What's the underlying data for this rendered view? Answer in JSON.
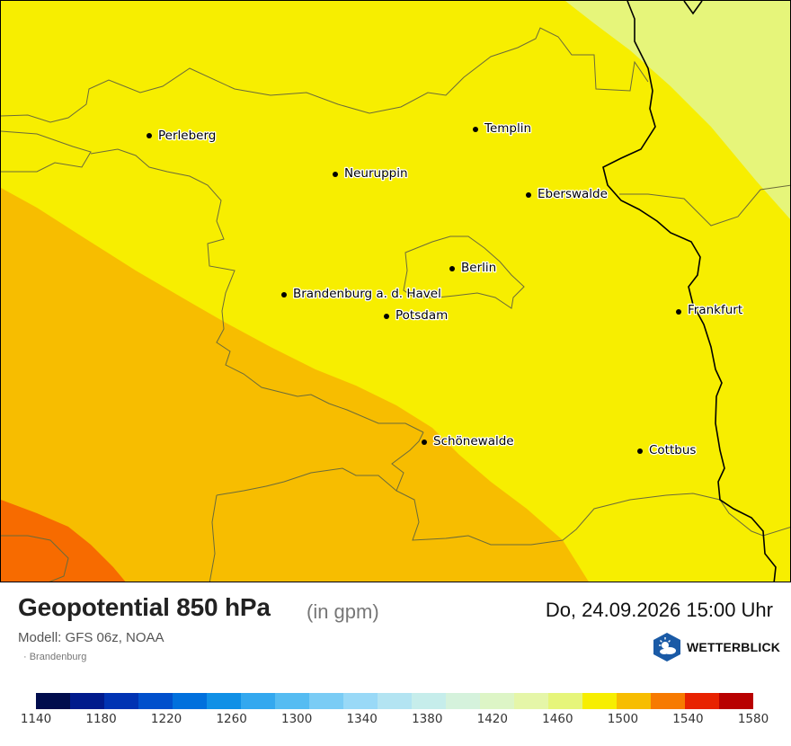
{
  "map": {
    "cities": [
      {
        "id": "perleberg",
        "name": "Perleberg"
      },
      {
        "id": "templin",
        "name": "Templin"
      },
      {
        "id": "neuruppin",
        "name": "Neuruppin"
      },
      {
        "id": "eberswalde",
        "name": "Eberswalde"
      },
      {
        "id": "berlin",
        "name": "Berlin"
      },
      {
        "id": "brandenburg",
        "name": "Brandenburg a. d. Havel"
      },
      {
        "id": "potsdam",
        "name": "Potsdam"
      },
      {
        "id": "frankfurt",
        "name": "Frankfurt"
      },
      {
        "id": "schoenewalde",
        "name": "Schönewalde"
      },
      {
        "id": "cottbus",
        "name": "Cottbus"
      }
    ],
    "field_colors": {
      "1480": "#e6f57a",
      "1500": "#f7ee00",
      "1520": "#f7bd00",
      "1540": "#f76b00"
    }
  },
  "footer": {
    "title": "Geopotential 850 hPa",
    "unit": "(in gpm)",
    "model": "Modell: GFS 06z, NOAA",
    "region": "· Brandenburg",
    "datetime": "Do, 24.09.2026 15:00 Uhr",
    "brand": "WETTERBLICK",
    "brand_icon": "sun-cloud-icon"
  },
  "colorbar": {
    "colors": [
      "#000c4d",
      "#001a8c",
      "#0033b3",
      "#0050cc",
      "#0070dd",
      "#1090e6",
      "#33a8ef",
      "#55bcf2",
      "#7accf5",
      "#99d9f7",
      "#b3e4f2",
      "#c6edeb",
      "#d5f2dc",
      "#ddf5c6",
      "#e5f6a8",
      "#e6f57a",
      "#f7ee00",
      "#f7bd00",
      "#f77a00",
      "#e82200",
      "#b80000"
    ],
    "ticks": [
      "1140",
      "1180",
      "1220",
      "1260",
      "1300",
      "1340",
      "1380",
      "1420",
      "1460",
      "1500",
      "1540",
      "1580"
    ]
  }
}
